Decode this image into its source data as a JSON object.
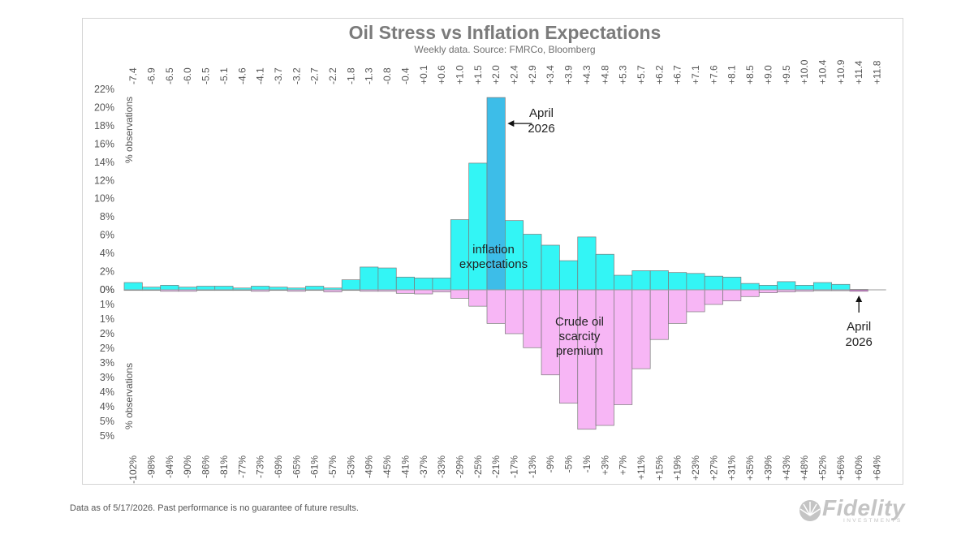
{
  "footnote": "Data as of 5/17/2026. Past performance is no guarantee of future results.",
  "logo": {
    "word": "Fidelity",
    "sub": "INVESTMENTS",
    "icon": "fidelity-fan-icon"
  },
  "colors": {
    "cyan": "#33f5f5",
    "highlight": "#3dbde8",
    "pink": "#f7b6f5",
    "outline": "#7a7a7a"
  },
  "chart_data": {
    "type": "bar",
    "title": "Oil Stress vs Inflation Expectations",
    "subtitle": "Weekly data.  Source: FMRCo, Bloomberg",
    "y_axis_label_top": "% observations",
    "y_axis_label_bottom": "% observations",
    "top_ticks": [
      "22%",
      "20%",
      "18%",
      "16%",
      "14%",
      "12%",
      "10%",
      "8%",
      "6%",
      "4%",
      "2%",
      "0%"
    ],
    "bottom_ticks": [
      "1%",
      "1%",
      "2%",
      "2%",
      "3%",
      "3%",
      "4%",
      "4%",
      "5%",
      "5%"
    ],
    "ylim_top": [
      0,
      22
    ],
    "ylim_bottom": [
      0,
      5.5
    ],
    "top_categories": [
      "-7.4",
      "-6.9",
      "-6.5",
      "-6.0",
      "-5.5",
      "-5.1",
      "-4.6",
      "-4.1",
      "-3.7",
      "-3.2",
      "-2.7",
      "-2.2",
      "-1.8",
      "-1.3",
      "-0.8",
      "-0.4",
      "+0.1",
      "+0.6",
      "+1.0",
      "+1.5",
      "+2.0",
      "+2.4",
      "+2.9",
      "+3.4",
      "+3.9",
      "+4.3",
      "+4.8",
      "+5.3",
      "+5.7",
      "+6.2",
      "+6.7",
      "+7.1",
      "+7.6",
      "+8.1",
      "+8.5",
      "+9.0",
      "+9.5",
      "+10.0",
      "+10.4",
      "+10.9",
      "+11.4",
      "+11.8"
    ],
    "bottom_categories": [
      "-102%",
      "-98%",
      "-94%",
      "-90%",
      "-86%",
      "-81%",
      "-77%",
      "-73%",
      "-69%",
      "-65%",
      "-61%",
      "-57%",
      "-53%",
      "-49%",
      "-45%",
      "-41%",
      "-37%",
      "-33%",
      "-29%",
      "-25%",
      "-21%",
      "-17%",
      "-13%",
      "-9%",
      "-5%",
      "-1%",
      "+3%",
      "+7%",
      "+11%",
      "+15%",
      "+19%",
      "+23%",
      "+27%",
      "+31%",
      "+35%",
      "+39%",
      "+43%",
      "+48%",
      "+52%",
      "+56%",
      "+60%",
      "+64%"
    ],
    "series": [
      {
        "name": "inflation expectations",
        "values": [
          0.8,
          0.3,
          0.5,
          0.3,
          0.4,
          0.4,
          0.2,
          0.4,
          0.3,
          0.2,
          0.4,
          0.2,
          1.1,
          2.5,
          2.4,
          1.4,
          1.3,
          1.3,
          7.7,
          13.9,
          21.1,
          7.6,
          6.1,
          4.9,
          3.2,
          5.8,
          3.9,
          1.6,
          2.1,
          2.1,
          1.9,
          1.8,
          1.5,
          1.4,
          0.7,
          0.5,
          0.9,
          0.5,
          0.8,
          0.6,
          0.05,
          0.0
        ],
        "highlight_index": 20,
        "color": "#33f5f5"
      },
      {
        "name": "Crude oil scarcity premium",
        "values": [
          0.02,
          0.02,
          0.05,
          0.05,
          0.02,
          0.02,
          0.02,
          0.05,
          0.02,
          0.05,
          0.02,
          0.07,
          0.02,
          0.05,
          0.05,
          0.12,
          0.14,
          0.07,
          0.29,
          0.56,
          1.15,
          1.5,
          1.98,
          2.91,
          3.88,
          4.77,
          4.64,
          3.93,
          2.7,
          1.7,
          1.15,
          0.75,
          0.5,
          0.38,
          0.23,
          0.1,
          0.07,
          0.05,
          0.03,
          0.03,
          0.05,
          0.0
        ],
        "highlight_index": 40,
        "color": "#f7b6f5"
      }
    ],
    "annotations": [
      {
        "line1": "April",
        "line2": "2026",
        "arrow": "left",
        "series": 0
      },
      {
        "line1": "April",
        "line2": "2026",
        "arrow": "up",
        "series": 1
      }
    ],
    "series_labels": [
      {
        "lines": [
          "inflation",
          "expectations"
        ]
      },
      {
        "lines": [
          "Crude oil",
          "scarcity",
          "premium"
        ]
      }
    ]
  }
}
